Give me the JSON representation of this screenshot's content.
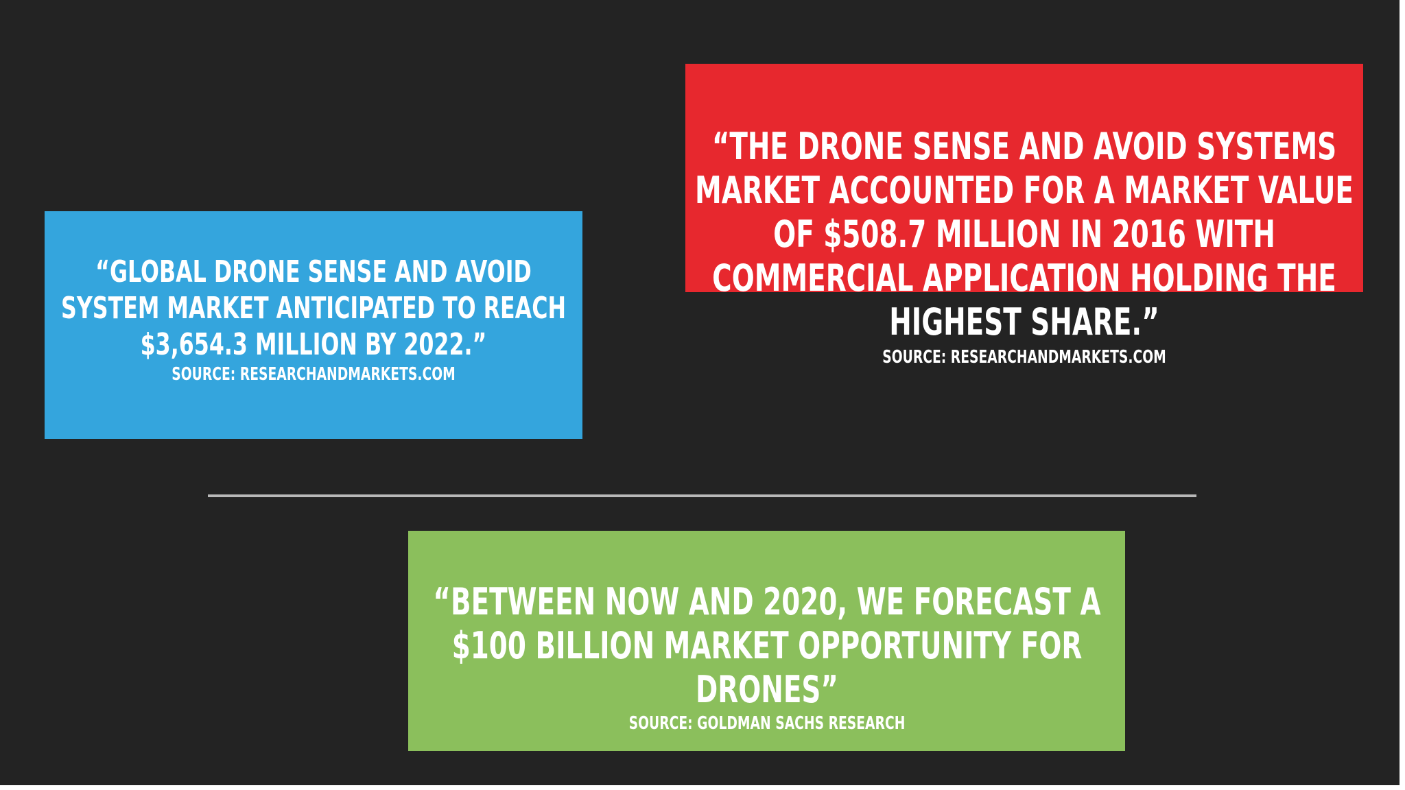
{
  "slide": {
    "background_color": "#232323",
    "quotes": [
      {
        "color": "#34a5dd",
        "text": "“GLOBAL DRONE SENSE AND AVOID SYSTEM MARKET ANTICIPATED TO REACH $3,654.3 MILLION BY 2022.”",
        "source": "SOURCE: RESEARCHANDMARKETS.COM"
      },
      {
        "color": "#e7282e",
        "text": "“THE DRONE SENSE AND AVOID SYSTEMS MARKET ACCOUNTED FOR A MARKET VALUE OF $508.7 MILLION IN 2016 WITH COMMERCIAL APPLICATION HOLDING THE HIGHEST SHARE.”",
        "source": "SOURCE: RESEARCHANDMARKETS.COM"
      },
      {
        "color": "#8bbf5c",
        "text": "“BETWEEN NOW AND 2020, WE FORECAST A $100 BILLION MARKET OPPORTUNITY FOR DRONES”",
        "source": "SOURCE: GOLDMAN SACHS RESEARCH"
      }
    ],
    "divider_color": "#b8b8b8"
  }
}
